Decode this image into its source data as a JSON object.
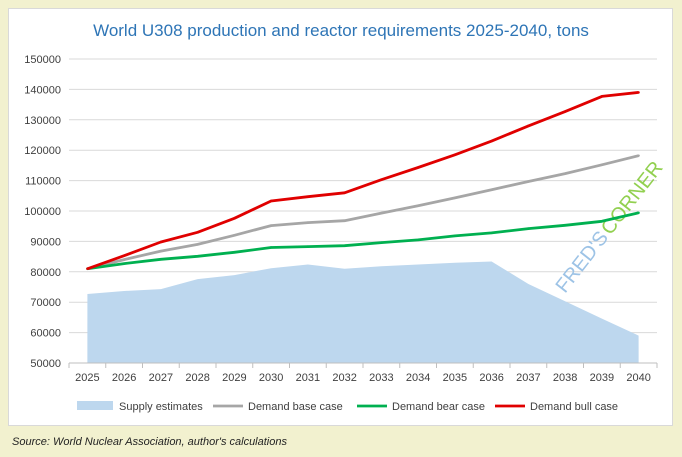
{
  "chart_data": {
    "type": "line",
    "title": "World U308 production and reactor requirements 2025-2040, tons",
    "categories": [
      "2025",
      "2026",
      "2027",
      "2028",
      "2029",
      "2030",
      "2031",
      "2032",
      "2033",
      "2034",
      "2035",
      "2036",
      "2037",
      "2038",
      "2039",
      "2040"
    ],
    "ylim": [
      50000,
      150000
    ],
    "yticks": [
      50000,
      60000,
      70000,
      80000,
      90000,
      100000,
      110000,
      120000,
      130000,
      140000,
      150000
    ],
    "grid": true,
    "legend_position": "bottom",
    "series": [
      {
        "name": "Supply estimates",
        "kind": "area",
        "color": "#bdd7ee",
        "values": [
          72700,
          73700,
          74300,
          77600,
          78900,
          81200,
          82400,
          81000,
          81800,
          82400,
          83000,
          83400,
          76000,
          70300,
          64600,
          59000
        ]
      },
      {
        "name": "Demand base case",
        "kind": "line",
        "color": "#a6a6a6",
        "values": [
          81000,
          84000,
          86800,
          89000,
          92000,
          95200,
          96200,
          96800,
          99300,
          101700,
          104300,
          107000,
          109700,
          112300,
          115200,
          118200
        ]
      },
      {
        "name": "Demand bear case",
        "kind": "line",
        "color": "#00b050",
        "values": [
          81000,
          82700,
          84100,
          85100,
          86400,
          88000,
          88300,
          88600,
          89600,
          90500,
          91800,
          92800,
          94200,
          95300,
          96600,
          99400
        ]
      },
      {
        "name": "Demand bull case",
        "kind": "line",
        "color": "#e00000",
        "values": [
          81000,
          85300,
          89800,
          93000,
          97600,
          103300,
          104700,
          106000,
          110300,
          114300,
          118500,
          123000,
          128000,
          132700,
          137700,
          139000
        ]
      }
    ],
    "annotations": [
      {
        "text_a": "FRED'S",
        "text_b": "CORNER",
        "color_a": "#9dc3e6",
        "color_b": "#92d050"
      }
    ]
  },
  "source": "Source: World Nuclear Association, author's calculations"
}
